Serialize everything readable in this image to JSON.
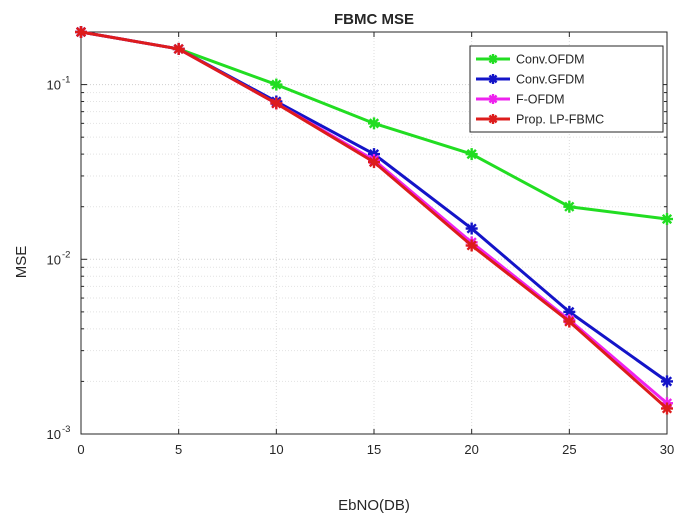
{
  "chart_data": {
    "type": "line",
    "title": "FBMC MSE",
    "xlabel": "EbNO(DB)",
    "ylabel": "MSE",
    "xlim": [
      0,
      30
    ],
    "ylim": [
      0.001,
      0.2
    ],
    "yscale": "log",
    "grid": true,
    "legend_position": "top-right",
    "x": [
      0,
      5,
      10,
      15,
      20,
      25,
      30
    ],
    "x_ticks": [
      "0",
      "5",
      "10",
      "15",
      "20",
      "25",
      "30"
    ],
    "y_ticks": [
      {
        "value": 0.1,
        "base": "10",
        "exp": "-1"
      },
      {
        "value": 0.01,
        "base": "10",
        "exp": "-2"
      },
      {
        "value": 0.001,
        "base": "10",
        "exp": "-3"
      }
    ],
    "series": [
      {
        "name": "Conv.OFDM",
        "color": "#22dd22",
        "values": [
          0.2,
          0.16,
          0.1,
          0.06,
          0.04,
          0.02,
          0.017
        ]
      },
      {
        "name": "Conv.GFDM",
        "color": "#1414c8",
        "values": [
          0.2,
          0.16,
          0.08,
          0.04,
          0.015,
          0.005,
          0.002
        ]
      },
      {
        "name": "F-OFDM",
        "color": "#ee22ee",
        "values": [
          0.2,
          0.16,
          0.078,
          0.037,
          0.0125,
          0.0045,
          0.0015
        ]
      },
      {
        "name": "Prop. LP-FBMC",
        "color": "#dd1c1c",
        "values": [
          0.2,
          0.16,
          0.078,
          0.036,
          0.012,
          0.0044,
          0.0014
        ]
      }
    ]
  }
}
